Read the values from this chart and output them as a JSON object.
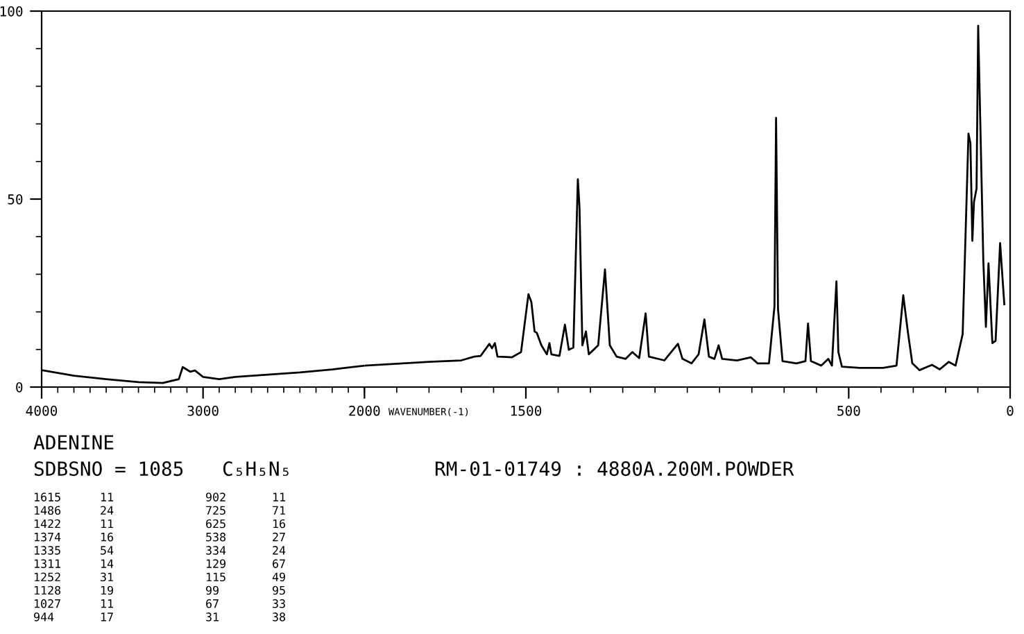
{
  "chart_data": [
    {
      "type": "line",
      "x": [
        4000,
        3800,
        3600,
        3400,
        3250,
        3150,
        3126,
        3080,
        3050,
        3000,
        2900,
        2800,
        2600,
        2400,
        2200,
        2000
      ],
      "series": [
        {
          "color": "#000000",
          "values": [
            4.5,
            3.0,
            2.1,
            1.3,
            1.1,
            2.1,
            5.3,
            4.1,
            4.4,
            2.7,
            2.1,
            2.7,
            3.3,
            3.9,
            4.7,
            5.7
          ]
        }
      ],
      "xlim": [
        4000,
        2000
      ],
      "xticks": [
        4000,
        3000,
        2000
      ],
      "ylim": [
        0,
        100
      ],
      "yticks": [
        0,
        50,
        100
      ],
      "grid": false,
      "legend": false,
      "marker": "none",
      "line_style": "solid",
      "annotations": [
        "ADENINE",
        "SDBSNO = 1085",
        "C₅H₅N₅",
        "RM-01-01749 : 4880A.200M.POWDER",
        "1615",
        "1486",
        "1422",
        "1374",
        "1335",
        "1311",
        "1252",
        "1128",
        "1027",
        "944",
        "11",
        "24",
        "11",
        "16",
        "54",
        "14",
        "31",
        "19",
        "11",
        "17",
        "902",
        "725",
        "625",
        "538",
        "334",
        "129",
        "115",
        "99",
        "67",
        "31",
        "11",
        "71",
        "16",
        "27",
        "24",
        "67",
        "49",
        "95",
        "33",
        "38"
      ]
    },
    {
      "type": "line",
      "xlabel": "WAVENUMBER(-1)",
      "x": [
        2000,
        1800,
        1700,
        1660,
        1640,
        1613,
        1605,
        1596,
        1588,
        1560,
        1544,
        1515,
        1492,
        1483,
        1473,
        1466,
        1452,
        1435,
        1427,
        1421,
        1396,
        1379,
        1367,
        1353,
        1339,
        1334,
        1325,
        1314,
        1305,
        1276,
        1255,
        1240,
        1219,
        1191,
        1170,
        1149,
        1129,
        1119,
        1071,
        1029,
        1015,
        987,
        965,
        947,
        933,
        916,
        903,
        892,
        846,
        803,
        782,
        747,
        730,
        725,
        719,
        705,
        662,
        634,
        626,
        617,
        585,
        563,
        552,
        538,
        532,
        521,
        465,
        394,
        352,
        331,
        317,
        303,
        281,
        242,
        218,
        190,
        169,
        147,
        129,
        123,
        117,
        112,
        104,
        99,
        91,
        83,
        75,
        67,
        55,
        45,
        31,
        18
      ],
      "series": [
        {
          "color": "#000000",
          "values": [
            5.7,
            6.7,
            7.1,
            8.1,
            8.3,
            11.5,
            10.3,
            11.7,
            8.1,
            8.0,
            7.9,
            9.3,
            24.7,
            22.6,
            14.8,
            14.4,
            11.1,
            8.7,
            11.7,
            8.7,
            8.3,
            16.6,
            9.9,
            10.5,
            55.3,
            48,
            11.1,
            14.8,
            8.7,
            11.1,
            31.3,
            11.1,
            8.1,
            7.5,
            9.3,
            7.7,
            19.6,
            8.1,
            7.1,
            11.5,
            7.5,
            6.3,
            8.7,
            18.0,
            8.1,
            7.5,
            11.1,
            7.5,
            7.1,
            7.9,
            6.3,
            6.3,
            21.4,
            71.6,
            20.8,
            6.9,
            6.3,
            6.9,
            16.9,
            6.9,
            5.7,
            7.5,
            5.7,
            28.1,
            9.3,
            5.4,
            5.1,
            5.1,
            5.7,
            24.4,
            14.8,
            6.3,
            4.5,
            5.9,
            4.7,
            6.7,
            5.7,
            14.1,
            67.4,
            64.9,
            38.9,
            49.2,
            52.8,
            96.1,
            64.9,
            33.5,
            16.0,
            32.9,
            11.7,
            12.3,
            38.3,
            22.0
          ]
        }
      ],
      "xlim": [
        2000,
        0
      ],
      "xticks": [
        1500,
        500,
        0
      ],
      "ylim": [
        0,
        100
      ],
      "tick_labels": "x",
      "grid": false,
      "legend": false,
      "marker": "none",
      "line_style": "solid"
    }
  ]
}
